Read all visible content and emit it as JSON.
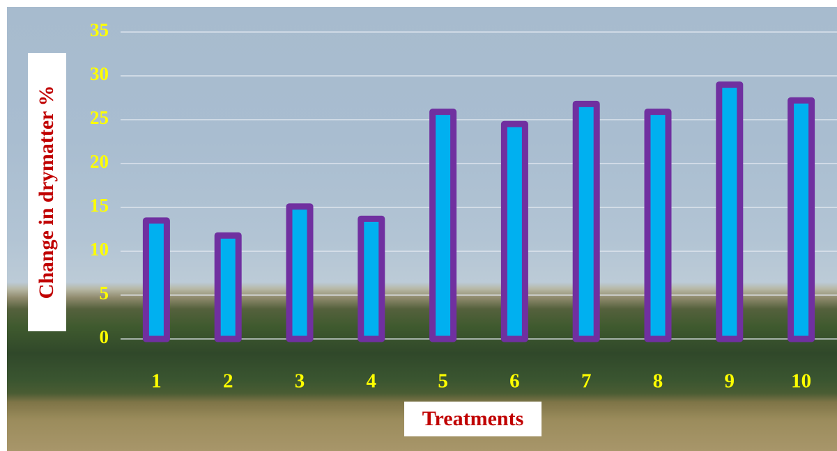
{
  "chart_data": {
    "type": "bar",
    "categories": [
      "1",
      "2",
      "3",
      "4",
      "5",
      "6",
      "7",
      "8",
      "9",
      "10"
    ],
    "values": [
      13.5,
      11.8,
      15.1,
      13.7,
      25.9,
      24.5,
      26.8,
      25.9,
      29.0,
      27.2
    ],
    "title": "",
    "xlabel": "Treatments",
    "ylabel": "Change in drymatter %",
    "ylim": [
      0,
      35
    ],
    "yticks": [
      "0",
      "5",
      "10",
      "15",
      "20",
      "25",
      "30",
      "35"
    ],
    "grid": true,
    "legend": "none",
    "colors": {
      "bar_fill": "#00b0f0",
      "bar_outline": "#7030a0",
      "tick_labels": "#ffff00",
      "axis_titles": "#c00000",
      "gridlines": "#e6ebf2",
      "title_boxes": "#ffffff"
    }
  }
}
